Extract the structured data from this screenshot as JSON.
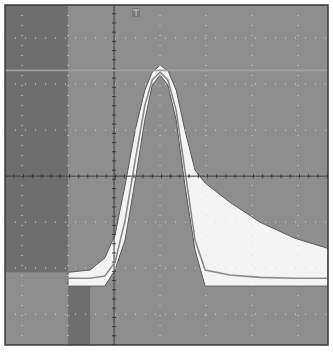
{
  "chart_data": {
    "type": "line",
    "xlim": [
      -1.37,
      5.65
    ],
    "ylim": [
      -3.67,
      3.72
    ],
    "xticks": [
      -1,
      0,
      1,
      2,
      3,
      4,
      5
    ],
    "yticks": [
      -3,
      -2,
      -1,
      0,
      1,
      2,
      3
    ],
    "grid": true,
    "tick_labels": false,
    "series": [
      {
        "type": "area",
        "color": "#f4f4f4",
        "x": [
          0,
          0.48,
          0.8,
          1.02,
          1.24,
          1.46,
          1.67,
          1.83,
          2.0,
          2.17,
          2.35,
          2.54,
          2.76,
          2.98,
          3.52,
          4.17,
          4.93,
          5.65
        ],
        "values": [
          -2.09,
          -2.04,
          -1.78,
          -1.28,
          -0.2,
          1.0,
          1.87,
          2.26,
          2.41,
          2.3,
          1.87,
          1.0,
          0.13,
          -0.15,
          -0.57,
          -1.0,
          -1.35,
          -1.57
        ],
        "lower": [
          -2.39,
          -2.39,
          -2.39,
          -2.04,
          -1.39,
          -0.09,
          1.22,
          1.98,
          2.2,
          1.98,
          1.22,
          -0.2,
          -1.61,
          -2.39,
          -2.39,
          -2.39,
          -2.39,
          -2.39
        ]
      },
      {
        "type": "line",
        "color": "#8a8a8a",
        "line_style": "solid",
        "x": [
          -1.37,
          0,
          0.48,
          0.8,
          1.02,
          1.24,
          1.46,
          1.67,
          1.83,
          2.0,
          2.17,
          2.35,
          2.54,
          2.76,
          2.98,
          3.52,
          4.17,
          4.93,
          5.65
        ],
        "values": [
          -2.22,
          -2.22,
          -2.22,
          -2.17,
          -1.87,
          -0.96,
          0.35,
          1.54,
          2.09,
          2.26,
          2.09,
          1.43,
          0.13,
          -1.39,
          -2.04,
          -2.15,
          -2.2,
          -2.22,
          -2.22
        ]
      },
      {
        "type": "line",
        "color": "#a0a0a0",
        "line_style": "solid",
        "x": [
          -1.37,
          5.65
        ],
        "values": [
          2.3,
          2.3
        ]
      }
    ]
  }
}
